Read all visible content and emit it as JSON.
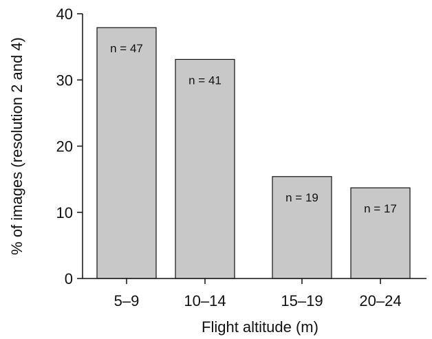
{
  "chart_data": {
    "type": "bar",
    "categories": [
      "5–9",
      "10–14",
      "15–19",
      "20–24"
    ],
    "values": [
      37.9,
      33.1,
      15.4,
      13.7
    ],
    "bar_labels": [
      "n = 47",
      "n = 41",
      "n = 19",
      "n = 17"
    ],
    "xlabel": "Flight altitude (m)",
    "ylabel": "% of images (resolution 2 and 4)",
    "ylim": [
      0,
      40
    ],
    "yticks": [
      0,
      10,
      20,
      30,
      40
    ],
    "grid": false,
    "legend": "none",
    "colors": {
      "bar_fill": "#c8c8c8",
      "bar_stroke": "#111111",
      "axis": "#111111"
    }
  }
}
